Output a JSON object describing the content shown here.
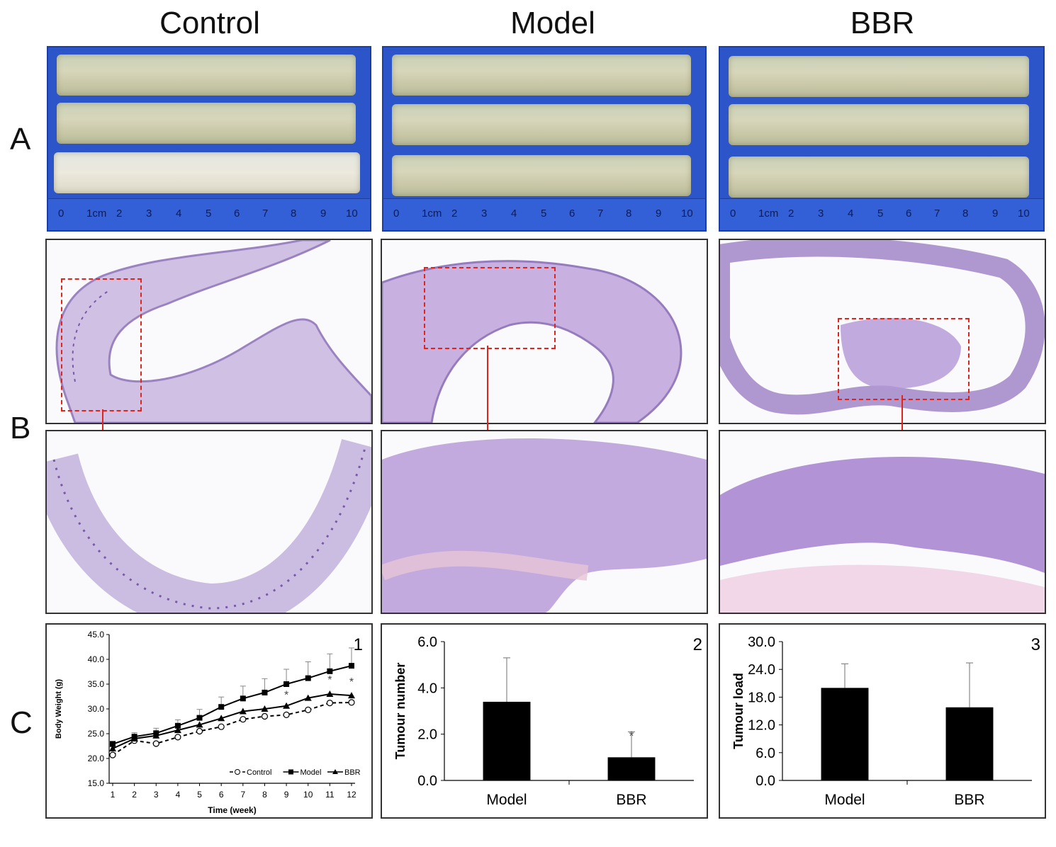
{
  "columns": [
    "Control",
    "Model",
    "BBR"
  ],
  "row_labels": [
    "A",
    "B",
    "C"
  ],
  "ruler_labels": [
    "0",
    "1cm",
    "2",
    "3",
    "4",
    "5",
    "6",
    "7",
    "8",
    "9",
    "10"
  ],
  "panel_numbers": [
    "1",
    "2",
    "3"
  ],
  "colors": {
    "tray_blue": "#2b55c8",
    "tissue": "#d6d2b6",
    "he_stain": "#9c7fc4",
    "roi_box": "#e0261c",
    "bar": "#000000"
  },
  "chart_data": [
    {
      "type": "line",
      "xlabel": "Time (week)",
      "ylabel": "Body Weight (g)",
      "x": [
        1,
        2,
        3,
        4,
        5,
        6,
        7,
        8,
        9,
        10,
        11,
        12
      ],
      "xticks": [
        "1",
        "2",
        "3",
        "4",
        "5",
        "6",
        "7",
        "8",
        "9",
        "10",
        "11",
        "12"
      ],
      "ylim": [
        15.0,
        45.0
      ],
      "yticks": [
        "15.0",
        "20.0",
        "25.0",
        "30.0",
        "35.0",
        "40.0",
        "45.0"
      ],
      "series": [
        {
          "name": "Control",
          "values": [
            20.7,
            23.6,
            23.0,
            24.3,
            25.5,
            26.4,
            27.9,
            28.5,
            28.8,
            29.8,
            31.2,
            31.3
          ]
        },
        {
          "name": "Model",
          "values": [
            22.9,
            24.4,
            25.1,
            26.6,
            28.2,
            30.4,
            32.1,
            33.3,
            35.0,
            36.2,
            37.6,
            38.7
          ],
          "errors": [
            0.6,
            0.8,
            1.0,
            1.2,
            1.7,
            2.0,
            2.5,
            2.8,
            3.0,
            3.3,
            3.5,
            3.6
          ]
        },
        {
          "name": "BBR",
          "values": [
            22.0,
            24.0,
            24.6,
            25.7,
            26.8,
            28.1,
            29.5,
            30.0,
            30.6,
            32.2,
            33.0,
            32.7
          ]
        }
      ],
      "significance": [
        {
          "x": 9,
          "y": 32.9,
          "label": "*"
        },
        {
          "x": 11,
          "y": 36.0,
          "label": "*"
        },
        {
          "x": 12,
          "y": 35.6,
          "label": "*"
        }
      ],
      "legend": "bottom-right",
      "grid": false
    },
    {
      "type": "bar",
      "ylabel": "Tumour number",
      "categories": [
        "Model",
        "BBR"
      ],
      "values": [
        3.4,
        1.0
      ],
      "errors": [
        1.9,
        1.1
      ],
      "ylim": [
        0.0,
        6.0
      ],
      "yticks": [
        "0.0",
        "2.0",
        "4.0",
        "6.0"
      ],
      "significance": [
        "",
        "*"
      ],
      "grid": false
    },
    {
      "type": "bar",
      "ylabel": "Tumour load",
      "categories": [
        "Model",
        "BBR"
      ],
      "values": [
        20.0,
        15.8
      ],
      "errors": [
        5.2,
        9.6
      ],
      "ylim": [
        0.0,
        30.0
      ],
      "yticks": [
        "0.0",
        "6.0",
        "12.0",
        "18.0",
        "24.0",
        "30.0"
      ],
      "significance": [
        "",
        ""
      ],
      "grid": false
    }
  ]
}
